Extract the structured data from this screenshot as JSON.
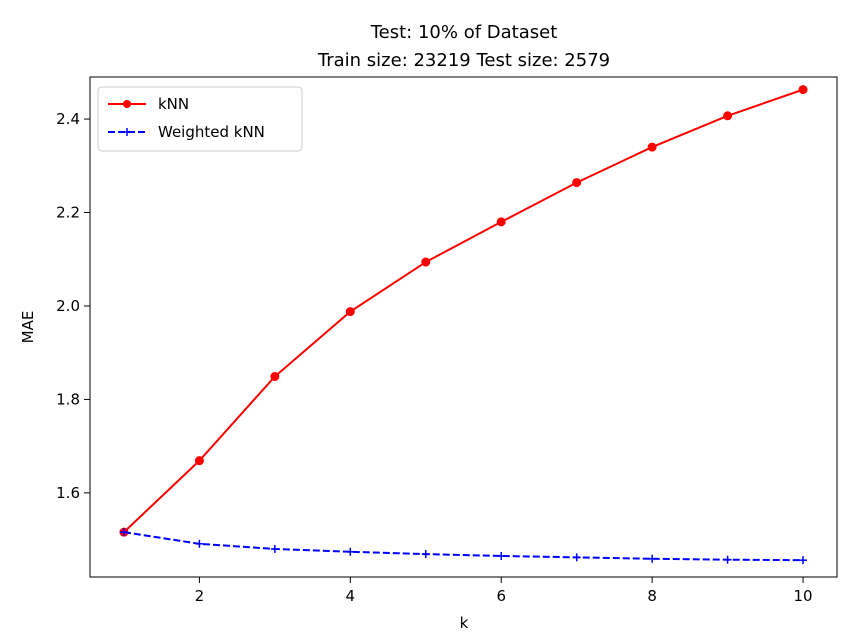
{
  "chart_data": {
    "type": "line",
    "title": [
      "Test: 10% of Dataset",
      "Train size: 23219 Test size: 2579"
    ],
    "xlabel": "k",
    "ylabel": "MAE",
    "x": [
      1,
      2,
      3,
      4,
      5,
      6,
      7,
      8,
      9,
      10
    ],
    "xlim": [
      0.55,
      10.45
    ],
    "ylim": [
      1.42,
      2.49
    ],
    "xticks": [
      2,
      4,
      6,
      8,
      10
    ],
    "yticks": [
      1.6,
      1.8,
      2.0,
      2.2,
      2.4
    ],
    "ytick_labels": [
      "1.6",
      "1.8",
      "2.0",
      "2.2",
      "2.4"
    ],
    "grid": false,
    "legend_position": "upper-left",
    "series": [
      {
        "name": "kNN",
        "color": "#ff0000",
        "line_style": "solid",
        "marker": "circle",
        "values": [
          1.516,
          1.669,
          1.849,
          1.988,
          2.094,
          2.18,
          2.264,
          2.34,
          2.407,
          2.463
        ]
      },
      {
        "name": "Weighted kNN",
        "color": "#0000ff",
        "line_style": "dashed",
        "marker": "plus",
        "values": [
          1.516,
          1.491,
          1.48,
          1.474,
          1.469,
          1.465,
          1.462,
          1.459,
          1.457,
          1.456
        ]
      }
    ]
  }
}
